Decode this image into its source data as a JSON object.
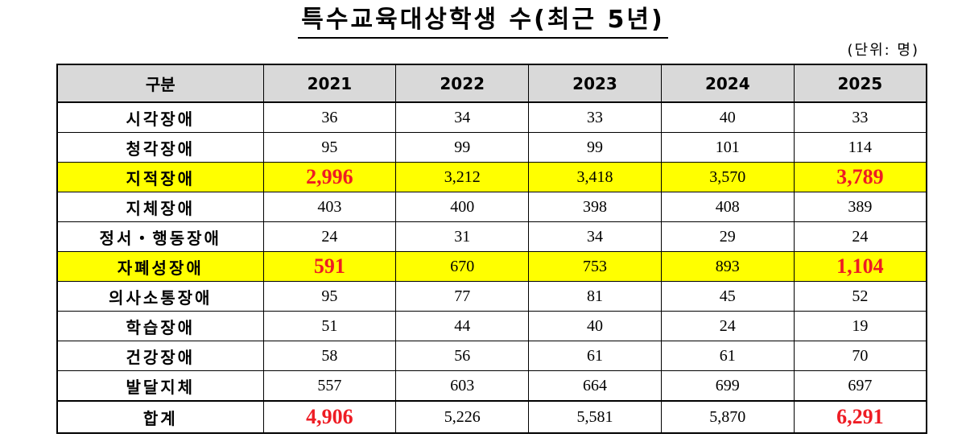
{
  "title": "특수교육대상학생 수(최근 5년)",
  "unit": "(단위: 명)",
  "colors": {
    "highlight": "#ffff00",
    "emphasis": "#ee1c24",
    "header_bg": "#d9d9d9"
  },
  "table": {
    "headers": [
      "구분",
      "2021",
      "2022",
      "2023",
      "2024",
      "2025"
    ],
    "rows": [
      {
        "category": "시각장애",
        "values": [
          "36",
          "34",
          "33",
          "40",
          "33"
        ]
      },
      {
        "category": "청각장애",
        "values": [
          "95",
          "99",
          "99",
          "101",
          "114"
        ]
      },
      {
        "category": "지적장애",
        "values": [
          "2,996",
          "3,212",
          "3,418",
          "3,570",
          "3,789"
        ],
        "highlight": true
      },
      {
        "category": "지체장애",
        "values": [
          "403",
          "400",
          "398",
          "408",
          "389"
        ]
      },
      {
        "category": "정서・행동장애",
        "values": [
          "24",
          "31",
          "34",
          "29",
          "24"
        ]
      },
      {
        "category": "자폐성장애",
        "values": [
          "591",
          "670",
          "753",
          "893",
          "1,104"
        ],
        "highlight": true
      },
      {
        "category": "의사소통장애",
        "values": [
          "95",
          "77",
          "81",
          "45",
          "52"
        ]
      },
      {
        "category": "학습장애",
        "values": [
          "51",
          "44",
          "40",
          "24",
          "19"
        ]
      },
      {
        "category": "건강장애",
        "values": [
          "58",
          "56",
          "61",
          "61",
          "70"
        ]
      },
      {
        "category": "발달지체",
        "values": [
          "557",
          "603",
          "664",
          "699",
          "697"
        ]
      },
      {
        "category": "합계",
        "values": [
          "4,906",
          "5,226",
          "5,581",
          "5,870",
          "6,291"
        ],
        "total": true
      }
    ]
  }
}
